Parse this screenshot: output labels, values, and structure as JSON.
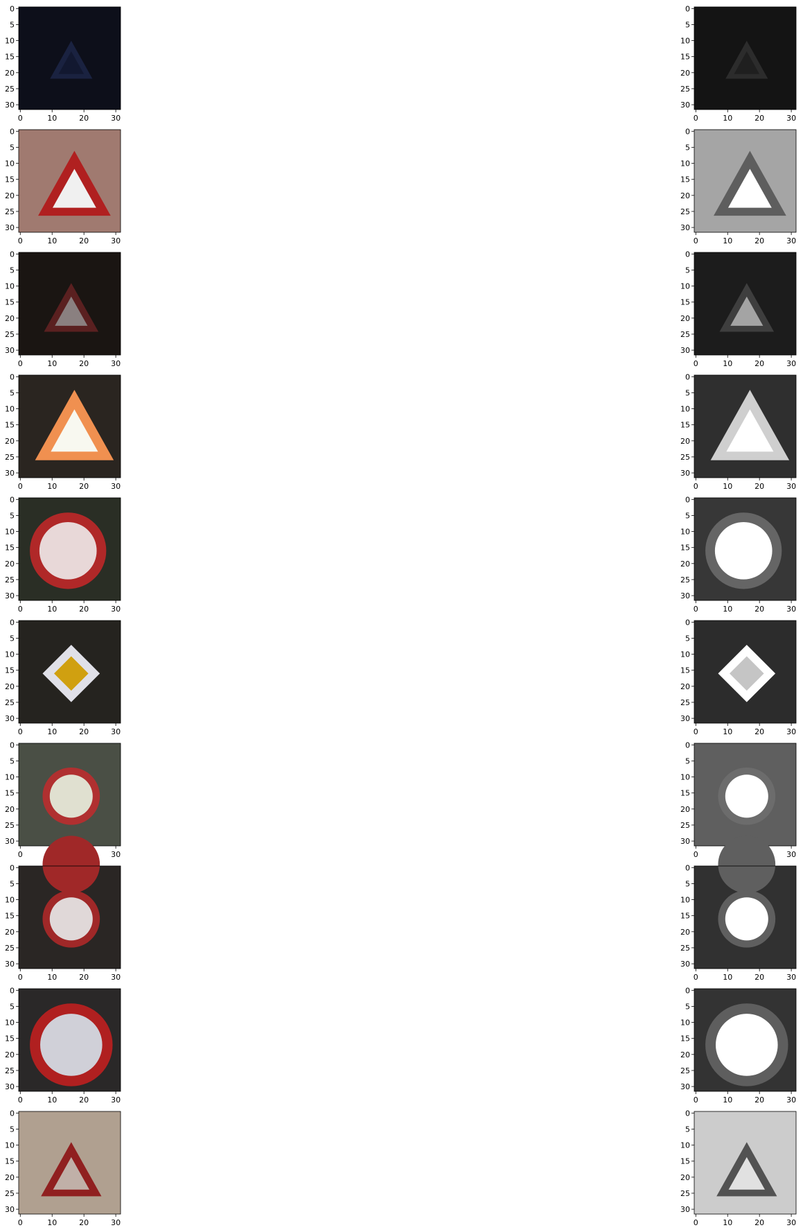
{
  "figure": {
    "xlim": [
      -0.5,
      31.5
    ],
    "ylim": [
      31.5,
      -0.5
    ],
    "xticks": [
      0,
      10,
      20,
      30
    ],
    "yticks": [
      0,
      5,
      10,
      15,
      20,
      25,
      30
    ]
  }
}
